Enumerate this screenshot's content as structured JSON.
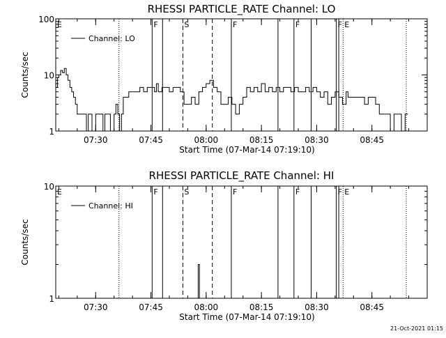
{
  "chart_data": [
    {
      "type": "line",
      "title": "RHESSI PARTICLE_RATE Channel: LO",
      "xlabel": "Start Time (07-Mar-14 07:19:10)",
      "ylabel": "Counts/sec",
      "y_scale": "log",
      "ylim": [
        1,
        100
      ],
      "y_ticks": [
        {
          "value": 1,
          "label": "1"
        },
        {
          "value": 10,
          "label": "10"
        },
        {
          "value": 100,
          "label": "100"
        }
      ],
      "xlim": [
        "07:19:10",
        "09:00:00"
      ],
      "x_ticks": [
        "07:30",
        "07:45",
        "08:00",
        "08:15",
        "08:30",
        "08:45"
      ],
      "legend": {
        "position": "top-left",
        "entries": [
          "Channel: LO"
        ]
      },
      "grid": false,
      "series": [
        {
          "name": "Channel: LO",
          "x": [
            "07:19:10",
            "07:19:40",
            "07:20:00",
            "07:20:30",
            "07:21:00",
            "07:21:30",
            "07:22:00",
            "07:22:30",
            "07:23:00",
            "07:23:30",
            "07:24:00",
            "07:24:30",
            "07:25:00",
            "07:26:00",
            "07:27:00",
            "07:27:30",
            "07:28:00",
            "07:28:30",
            "07:29:00",
            "07:30:00",
            "07:31:00",
            "07:31:30",
            "07:32:00",
            "07:32:30",
            "07:33:00",
            "07:34:00",
            "07:35:00",
            "07:35:30",
            "07:36:00",
            "07:36:30",
            "07:37:00",
            "07:37:30",
            "07:38:00",
            "07:39:00",
            "07:40:00",
            "07:41:00",
            "07:42:00",
            "07:43:00",
            "07:44:00",
            "07:45:00",
            "07:46:00",
            "07:46:30",
            "07:47:00",
            "07:48:00",
            "07:49:00",
            "07:50:00",
            "07:51:00",
            "07:52:00",
            "07:53:00",
            "07:54:00",
            "07:55:00",
            "07:56:00",
            "07:57:00",
            "07:58:00",
            "07:59:00",
            "08:00:00",
            "08:01:00",
            "08:02:00",
            "08:03:00",
            "08:04:00",
            "08:05:00",
            "08:06:00",
            "08:07:00",
            "08:08:00",
            "08:09:00",
            "08:10:00",
            "08:11:00",
            "08:12:00",
            "08:13:00",
            "08:14:00",
            "08:15:00",
            "08:16:00",
            "08:17:00",
            "08:18:00",
            "08:19:00",
            "08:20:00",
            "08:21:00",
            "08:22:00",
            "08:23:00",
            "08:24:00",
            "08:25:00",
            "08:26:00",
            "08:27:00",
            "08:28:00",
            "08:29:00",
            "08:30:00",
            "08:31:00",
            "08:32:00",
            "08:33:00",
            "08:34:00",
            "08:35:00",
            "08:36:00",
            "08:37:00",
            "08:38:00",
            "08:38:30",
            "08:39:00",
            "08:40:00",
            "08:41:00",
            "08:42:00",
            "08:43:00",
            "08:44:00",
            "08:45:00",
            "08:46:00",
            "08:47:00",
            "08:48:00",
            "08:49:00",
            "08:50:00",
            "08:51:00",
            "08:52:00",
            "08:53:00",
            "08:54:00"
          ],
          "y": [
            6,
            9,
            10,
            12,
            11,
            13,
            10,
            8,
            6,
            5,
            4,
            3,
            2,
            2,
            2,
            1,
            2,
            2,
            1,
            2,
            2,
            2,
            1,
            2,
            2,
            1,
            2,
            3,
            2,
            1,
            2,
            4,
            4,
            5,
            5,
            5,
            6,
            5,
            6,
            6,
            5,
            7,
            5,
            6,
            6,
            5,
            6,
            6,
            5,
            3,
            3,
            4,
            3,
            5,
            6,
            7,
            8,
            6,
            5,
            3,
            3,
            4,
            3,
            2,
            3,
            4,
            6,
            5,
            6,
            5,
            7,
            5,
            6,
            5,
            6,
            5,
            6,
            6,
            5,
            6,
            5,
            5,
            6,
            5,
            6,
            5,
            4,
            5,
            3,
            4,
            5,
            4,
            3,
            5,
            4,
            4,
            4,
            4,
            4,
            3,
            4,
            4,
            3,
            2,
            2,
            2,
            1,
            2,
            2,
            1,
            2
          ]
        }
      ],
      "markers": [
        {
          "time": "07:19:10",
          "label": "E",
          "style": "none"
        },
        {
          "time": "07:45:20",
          "label": "F",
          "style": "solid"
        },
        {
          "time": "07:48:10",
          "label": "",
          "style": "solid"
        },
        {
          "time": "07:36:20",
          "label": "",
          "style": "dotted"
        },
        {
          "time": "07:53:40",
          "label": "S",
          "style": "dashed"
        },
        {
          "time": "08:01:40",
          "label": "",
          "style": "dashed"
        },
        {
          "time": "08:06:50",
          "label": "F",
          "style": "solid"
        },
        {
          "time": "08:19:30",
          "label": "",
          "style": "solid"
        },
        {
          "time": "08:23:50",
          "label": "F",
          "style": "solid"
        },
        {
          "time": "08:28:30",
          "label": "",
          "style": "solid"
        },
        {
          "time": "08:35:20",
          "label": "F",
          "style": "solid"
        },
        {
          "time": "08:36:00",
          "label": "",
          "style": "solid"
        },
        {
          "time": "08:37:10",
          "label": "E",
          "style": "dotted"
        },
        {
          "time": "08:54:20",
          "label": "",
          "style": "dotted"
        }
      ]
    },
    {
      "type": "line",
      "title": "RHESSI PARTICLE_RATE Channel: HI",
      "xlabel": "Start Time (07-Mar-14 07:19:10)",
      "ylabel": "Counts/sec",
      "y_scale": "log",
      "ylim": [
        1,
        10
      ],
      "y_ticks": [
        {
          "value": 1,
          "label": "1"
        },
        {
          "value": 10,
          "label": "10"
        }
      ],
      "xlim": [
        "07:19:10",
        "09:00:00"
      ],
      "x_ticks": [
        "07:30",
        "07:45",
        "08:00",
        "08:15",
        "08:30",
        "08:45"
      ],
      "legend": {
        "position": "top-left",
        "entries": [
          "Channel: HI"
        ]
      },
      "grid": false,
      "series": [
        {
          "name": "Channel: HI",
          "x": [
            "07:57:20",
            "07:57:40",
            "07:57:50",
            "07:58:10",
            "07:58:20"
          ],
          "y": [
            1,
            1,
            2,
            1,
            1
          ]
        }
      ],
      "markers": [
        {
          "time": "07:19:10",
          "label": "E",
          "style": "none"
        },
        {
          "time": "07:45:20",
          "label": "F",
          "style": "solid"
        },
        {
          "time": "07:48:10",
          "label": "",
          "style": "solid"
        },
        {
          "time": "07:36:20",
          "label": "",
          "style": "dotted"
        },
        {
          "time": "07:53:40",
          "label": "S",
          "style": "dashed"
        },
        {
          "time": "08:01:40",
          "label": "",
          "style": "dashed"
        },
        {
          "time": "08:06:50",
          "label": "F",
          "style": "solid"
        },
        {
          "time": "08:19:30",
          "label": "",
          "style": "solid"
        },
        {
          "time": "08:23:50",
          "label": "F",
          "style": "solid"
        },
        {
          "time": "08:28:30",
          "label": "",
          "style": "solid"
        },
        {
          "time": "08:35:20",
          "label": "F",
          "style": "solid"
        },
        {
          "time": "08:36:00",
          "label": "",
          "style": "solid"
        },
        {
          "time": "08:37:10",
          "label": "E",
          "style": "dotted"
        },
        {
          "time": "08:54:20",
          "label": "",
          "style": "dotted"
        }
      ]
    }
  ],
  "footer": {
    "timestamp": "21-Oct-2021 01:15"
  }
}
